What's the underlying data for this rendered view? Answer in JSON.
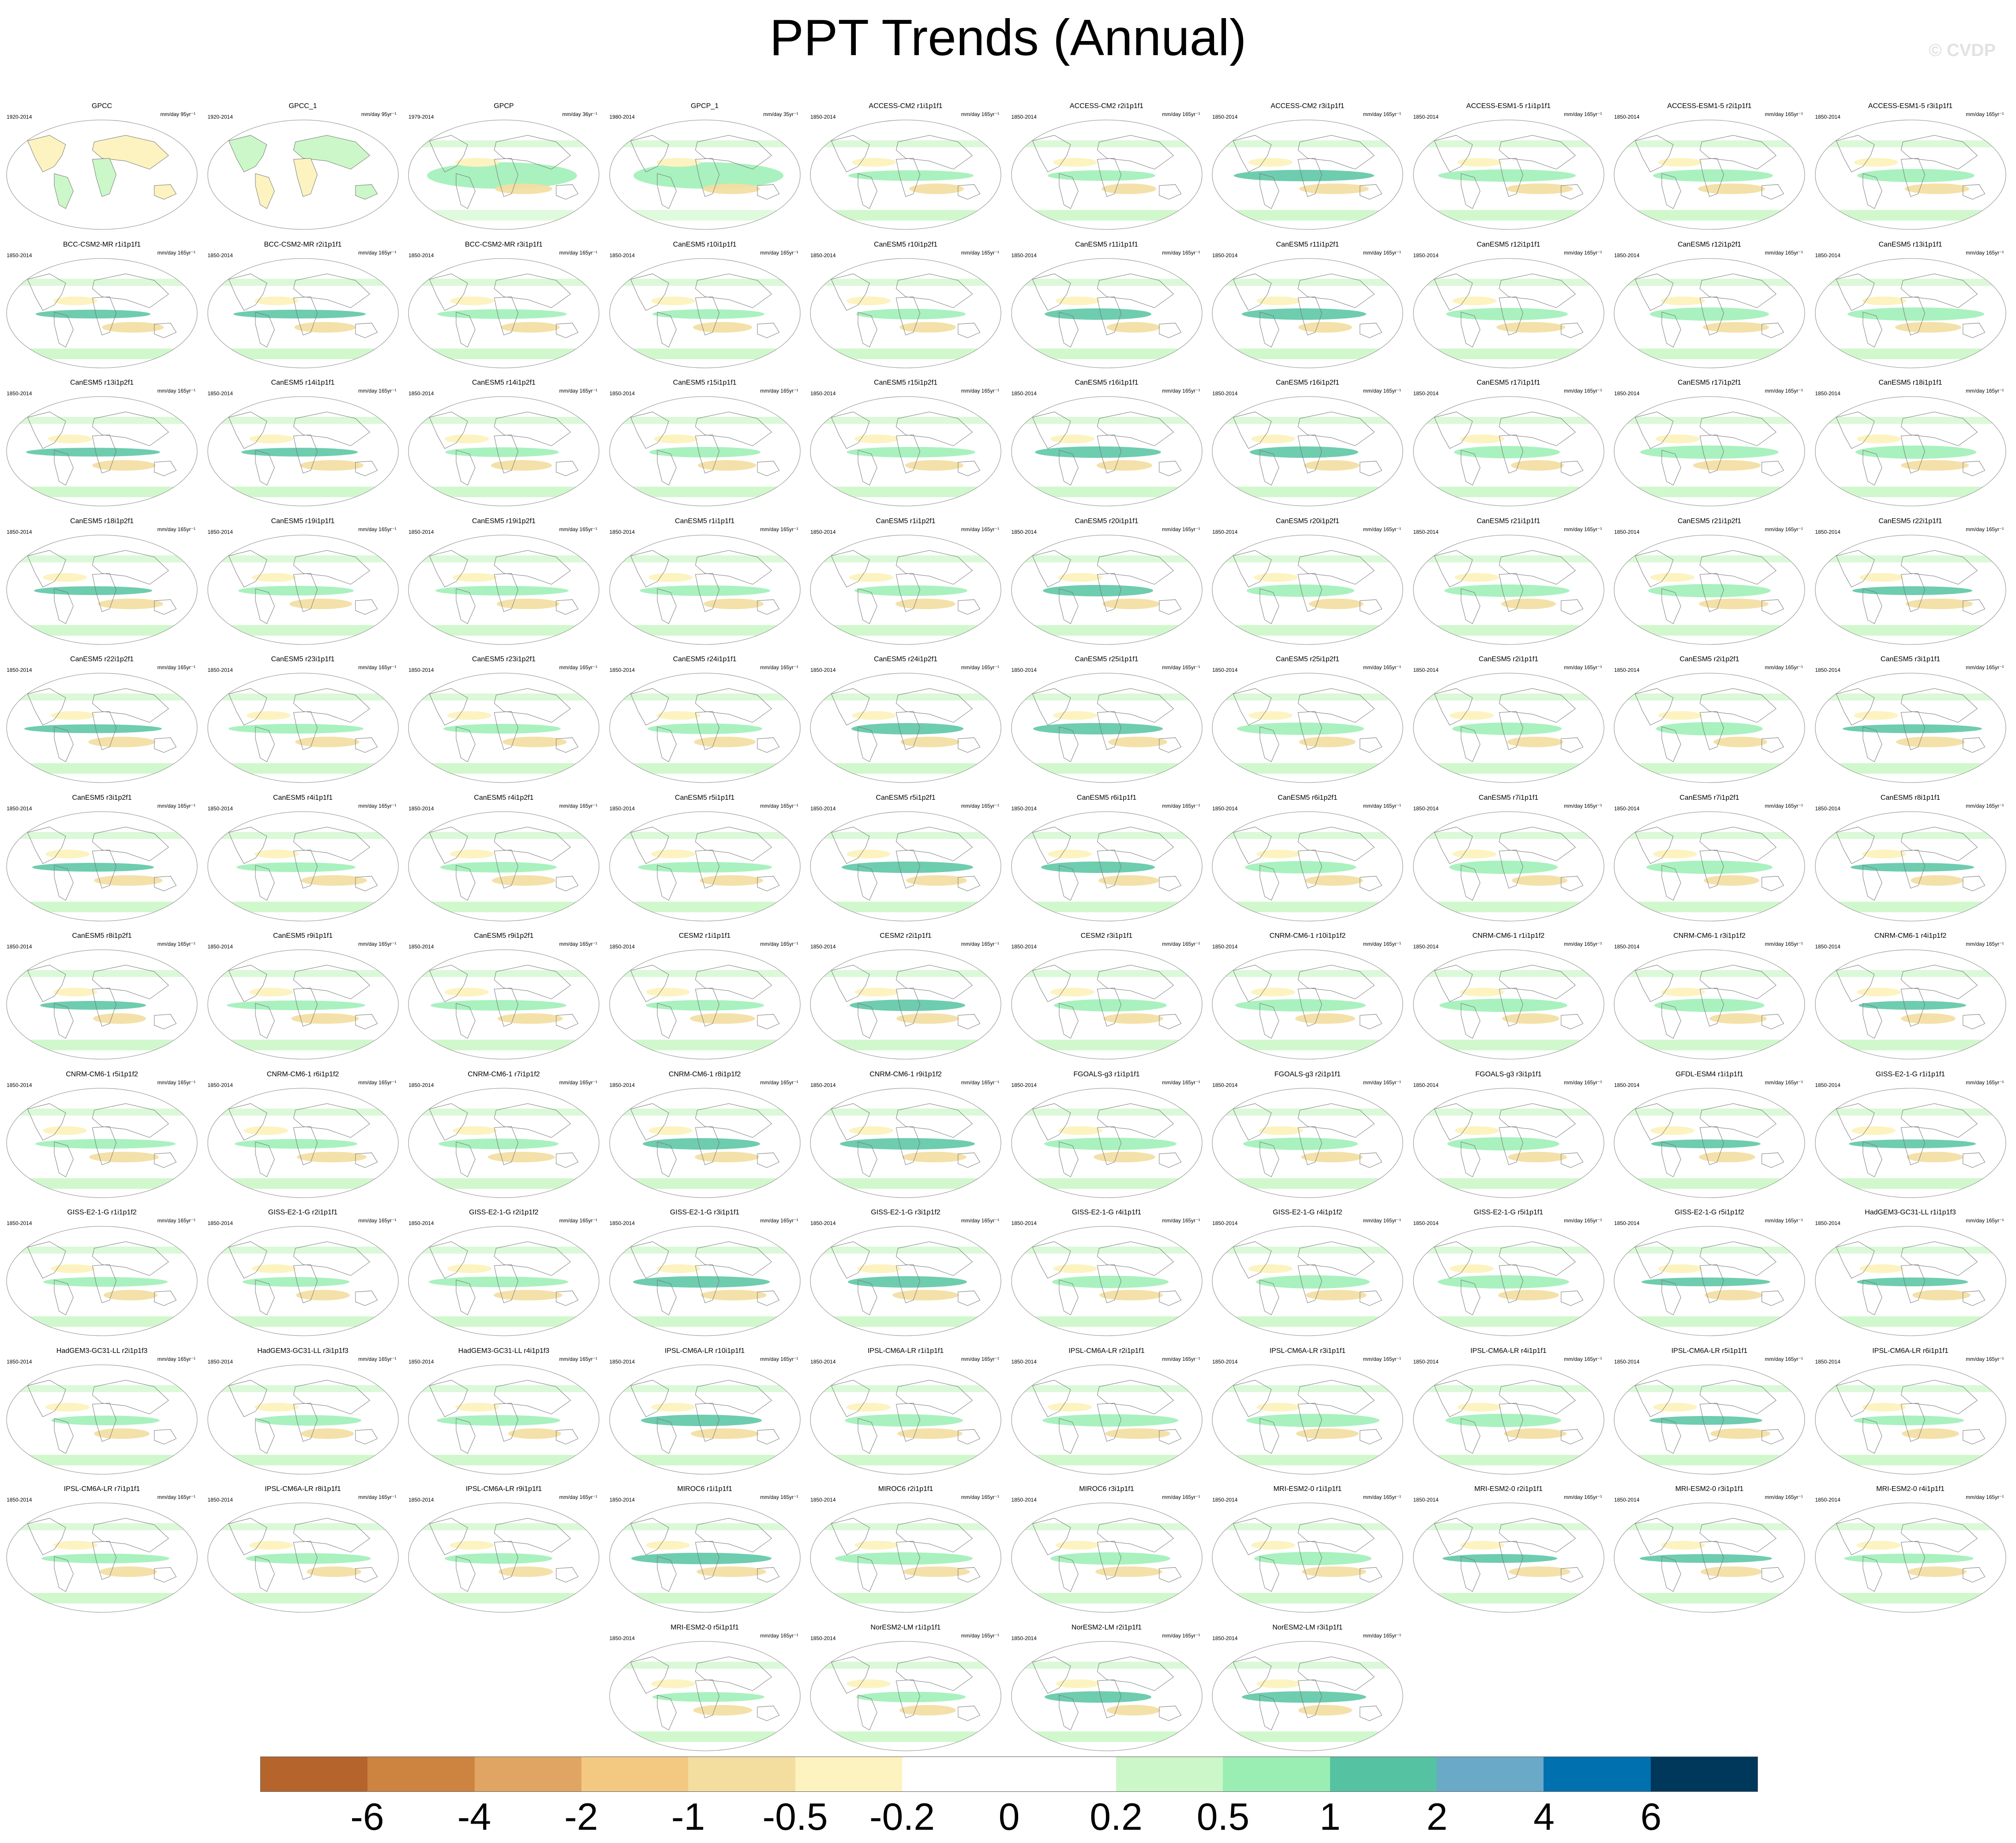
{
  "title": "PPT Trends (Annual)",
  "watermark": "© CVDP",
  "chart_data": {
    "type": "heatmap",
    "variable": "PPT Trends (Annual)",
    "colorbar": {
      "tick_labels": [
        "-6",
        "-4",
        "-2",
        "-1",
        "-0.5",
        "-0.2",
        "0",
        "0.2",
        "0.5",
        "1",
        "2",
        "4",
        "6"
      ],
      "colors": [
        "#b5652b",
        "#cc8440",
        "#e0a562",
        "#f3c982",
        "#f3dea0",
        "#fdf3c0",
        "#ffffff",
        "#ffffff",
        "#ccf7c8",
        "#9aeeb4",
        "#55c3a1",
        "#6aa9c8",
        "#0071ae",
        "#00385b"
      ]
    },
    "panels": [
      {
        "title": "GPCC",
        "years": "1920-2014",
        "units": "mm/day 95yr⁻¹"
      },
      {
        "title": "GPCC_1",
        "years": "1920-2014",
        "units": "mm/day 95yr⁻¹"
      },
      {
        "title": "GPCP",
        "years": "1979-2014",
        "units": "mm/day 36yr⁻¹"
      },
      {
        "title": "GPCP_1",
        "years": "1980-2014",
        "units": "mm/day 35yr⁻¹"
      },
      {
        "title": "ACCESS-CM2 r1i1p1f1",
        "years": "1850-2014",
        "units": "mm/day 165yr⁻¹"
      },
      {
        "title": "ACCESS-CM2 r2i1p1f1",
        "years": "1850-2014",
        "units": "mm/day 165yr⁻¹"
      },
      {
        "title": "ACCESS-CM2 r3i1p1f1",
        "years": "1850-2014",
        "units": "mm/day 165yr⁻¹"
      },
      {
        "title": "ACCESS-ESM1-5 r1i1p1f1",
        "years": "1850-2014",
        "units": "mm/day 165yr⁻¹"
      },
      {
        "title": "ACCESS-ESM1-5 r2i1p1f1",
        "years": "1850-2014",
        "units": "mm/day 165yr⁻¹"
      },
      {
        "title": "ACCESS-ESM1-5 r3i1p1f1",
        "years": "1850-2014",
        "units": "mm/day 165yr⁻¹"
      },
      {
        "title": "BCC-CSM2-MR r1i1p1f1",
        "years": "1850-2014",
        "units": "mm/day 165yr⁻¹"
      },
      {
        "title": "BCC-CSM2-MR r2i1p1f1",
        "years": "1850-2014",
        "units": "mm/day 165yr⁻¹"
      },
      {
        "title": "BCC-CSM2-MR r3i1p1f1",
        "years": "1850-2014",
        "units": "mm/day 165yr⁻¹"
      },
      {
        "title": "CanESM5 r10i1p1f1",
        "years": "1850-2014",
        "units": "mm/day 165yr⁻¹"
      },
      {
        "title": "CanESM5 r10i1p2f1",
        "years": "1850-2014",
        "units": "mm/day 165yr⁻¹"
      },
      {
        "title": "CanESM5 r11i1p1f1",
        "years": "1850-2014",
        "units": "mm/day 165yr⁻¹"
      },
      {
        "title": "CanESM5 r11i1p2f1",
        "years": "1850-2014",
        "units": "mm/day 165yr⁻¹"
      },
      {
        "title": "CanESM5 r12i1p1f1",
        "years": "1850-2014",
        "units": "mm/day 165yr⁻¹"
      },
      {
        "title": "CanESM5 r12i1p2f1",
        "years": "1850-2014",
        "units": "mm/day 165yr⁻¹"
      },
      {
        "title": "CanESM5 r13i1p1f1",
        "years": "1850-2014",
        "units": "mm/day 165yr⁻¹"
      },
      {
        "title": "CanESM5 r13i1p2f1",
        "years": "1850-2014",
        "units": "mm/day 165yr⁻¹"
      },
      {
        "title": "CanESM5 r14i1p1f1",
        "years": "1850-2014",
        "units": "mm/day 165yr⁻¹"
      },
      {
        "title": "CanESM5 r14i1p2f1",
        "years": "1850-2014",
        "units": "mm/day 165yr⁻¹"
      },
      {
        "title": "CanESM5 r15i1p1f1",
        "years": "1850-2014",
        "units": "mm/day 165yr⁻¹"
      },
      {
        "title": "CanESM5 r15i1p2f1",
        "years": "1850-2014",
        "units": "mm/day 165yr⁻¹"
      },
      {
        "title": "CanESM5 r16i1p1f1",
        "years": "1850-2014",
        "units": "mm/day 165yr⁻¹"
      },
      {
        "title": "CanESM5 r16i1p2f1",
        "years": "1850-2014",
        "units": "mm/day 165yr⁻¹"
      },
      {
        "title": "CanESM5 r17i1p1f1",
        "years": "1850-2014",
        "units": "mm/day 165yr⁻¹"
      },
      {
        "title": "CanESM5 r17i1p2f1",
        "years": "1850-2014",
        "units": "mm/day 165yr⁻¹"
      },
      {
        "title": "CanESM5 r18i1p1f1",
        "years": "1850-2014",
        "units": "mm/day 165yr⁻¹"
      },
      {
        "title": "CanESM5 r18i1p2f1",
        "years": "1850-2014",
        "units": "mm/day 165yr⁻¹"
      },
      {
        "title": "CanESM5 r19i1p1f1",
        "years": "1850-2014",
        "units": "mm/day 165yr⁻¹"
      },
      {
        "title": "CanESM5 r19i1p2f1",
        "years": "1850-2014",
        "units": "mm/day 165yr⁻¹"
      },
      {
        "title": "CanESM5 r1i1p1f1",
        "years": "1850-2014",
        "units": "mm/day 165yr⁻¹"
      },
      {
        "title": "CanESM5 r1i1p2f1",
        "years": "1850-2014",
        "units": "mm/day 165yr⁻¹"
      },
      {
        "title": "CanESM5 r20i1p1f1",
        "years": "1850-2014",
        "units": "mm/day 165yr⁻¹"
      },
      {
        "title": "CanESM5 r20i1p2f1",
        "years": "1850-2014",
        "units": "mm/day 165yr⁻¹"
      },
      {
        "title": "CanESM5 r21i1p1f1",
        "years": "1850-2014",
        "units": "mm/day 165yr⁻¹"
      },
      {
        "title": "CanESM5 r21i1p2f1",
        "years": "1850-2014",
        "units": "mm/day 165yr⁻¹"
      },
      {
        "title": "CanESM5 r22i1p1f1",
        "years": "1850-2014",
        "units": "mm/day 165yr⁻¹"
      },
      {
        "title": "CanESM5 r22i1p2f1",
        "years": "1850-2014",
        "units": "mm/day 165yr⁻¹"
      },
      {
        "title": "CanESM5 r23i1p1f1",
        "years": "1850-2014",
        "units": "mm/day 165yr⁻¹"
      },
      {
        "title": "CanESM5 r23i1p2f1",
        "years": "1850-2014",
        "units": "mm/day 165yr⁻¹"
      },
      {
        "title": "CanESM5 r24i1p1f1",
        "years": "1850-2014",
        "units": "mm/day 165yr⁻¹"
      },
      {
        "title": "CanESM5 r24i1p2f1",
        "years": "1850-2014",
        "units": "mm/day 165yr⁻¹"
      },
      {
        "title": "CanESM5 r25i1p1f1",
        "years": "1850-2014",
        "units": "mm/day 165yr⁻¹"
      },
      {
        "title": "CanESM5 r25i1p2f1",
        "years": "1850-2014",
        "units": "mm/day 165yr⁻¹"
      },
      {
        "title": "CanESM5 r2i1p1f1",
        "years": "1850-2014",
        "units": "mm/day 165yr⁻¹"
      },
      {
        "title": "CanESM5 r2i1p2f1",
        "years": "1850-2014",
        "units": "mm/day 165yr⁻¹"
      },
      {
        "title": "CanESM5 r3i1p1f1",
        "years": "1850-2014",
        "units": "mm/day 165yr⁻¹"
      },
      {
        "title": "CanESM5 r3i1p2f1",
        "years": "1850-2014",
        "units": "mm/day 165yr⁻¹"
      },
      {
        "title": "CanESM5 r4i1p1f1",
        "years": "1850-2014",
        "units": "mm/day 165yr⁻¹"
      },
      {
        "title": "CanESM5 r4i1p2f1",
        "years": "1850-2014",
        "units": "mm/day 165yr⁻¹"
      },
      {
        "title": "CanESM5 r5i1p1f1",
        "years": "1850-2014",
        "units": "mm/day 165yr⁻¹"
      },
      {
        "title": "CanESM5 r5i1p2f1",
        "years": "1850-2014",
        "units": "mm/day 165yr⁻¹"
      },
      {
        "title": "CanESM5 r6i1p1f1",
        "years": "1850-2014",
        "units": "mm/day 165yr⁻¹"
      },
      {
        "title": "CanESM5 r6i1p2f1",
        "years": "1850-2014",
        "units": "mm/day 165yr⁻¹"
      },
      {
        "title": "CanESM5 r7i1p1f1",
        "years": "1850-2014",
        "units": "mm/day 165yr⁻¹"
      },
      {
        "title": "CanESM5 r7i1p2f1",
        "years": "1850-2014",
        "units": "mm/day 165yr⁻¹"
      },
      {
        "title": "CanESM5 r8i1p1f1",
        "years": "1850-2014",
        "units": "mm/day 165yr⁻¹"
      },
      {
        "title": "CanESM5 r8i1p2f1",
        "years": "1850-2014",
        "units": "mm/day 165yr⁻¹"
      },
      {
        "title": "CanESM5 r9i1p1f1",
        "years": "1850-2014",
        "units": "mm/day 165yr⁻¹"
      },
      {
        "title": "CanESM5 r9i1p2f1",
        "years": "1850-2014",
        "units": "mm/day 165yr⁻¹"
      },
      {
        "title": "CESM2 r1i1p1f1",
        "years": "1850-2014",
        "units": "mm/day 165yr⁻¹"
      },
      {
        "title": "CESM2 r2i1p1f1",
        "years": "1850-2014",
        "units": "mm/day 165yr⁻¹"
      },
      {
        "title": "CESM2 r3i1p1f1",
        "years": "1850-2014",
        "units": "mm/day 165yr⁻¹"
      },
      {
        "title": "CNRM-CM6-1 r10i1p1f2",
        "years": "1850-2014",
        "units": "mm/day 165yr⁻¹"
      },
      {
        "title": "CNRM-CM6-1 r1i1p1f2",
        "years": "1850-2014",
        "units": "mm/day 165yr⁻¹"
      },
      {
        "title": "CNRM-CM6-1 r3i1p1f2",
        "years": "1850-2014",
        "units": "mm/day 165yr⁻¹"
      },
      {
        "title": "CNRM-CM6-1 r4i1p1f2",
        "years": "1850-2014",
        "units": "mm/day 165yr⁻¹"
      },
      {
        "title": "CNRM-CM6-1 r5i1p1f2",
        "years": "1850-2014",
        "units": "mm/day 165yr⁻¹"
      },
      {
        "title": "CNRM-CM6-1 r6i1p1f2",
        "years": "1850-2014",
        "units": "mm/day 165yr⁻¹"
      },
      {
        "title": "CNRM-CM6-1 r7i1p1f2",
        "years": "1850-2014",
        "units": "mm/day 165yr⁻¹"
      },
      {
        "title": "CNRM-CM6-1 r8i1p1f2",
        "years": "1850-2014",
        "units": "mm/day 165yr⁻¹"
      },
      {
        "title": "CNRM-CM6-1 r9i1p1f2",
        "years": "1850-2014",
        "units": "mm/day 165yr⁻¹"
      },
      {
        "title": "FGOALS-g3 r1i1p1f1",
        "years": "1850-2014",
        "units": "mm/day 165yr⁻¹"
      },
      {
        "title": "FGOALS-g3 r2i1p1f1",
        "years": "1850-2014",
        "units": "mm/day 165yr⁻¹"
      },
      {
        "title": "FGOALS-g3 r3i1p1f1",
        "years": "1850-2014",
        "units": "mm/day 165yr⁻¹"
      },
      {
        "title": "GFDL-ESM4 r1i1p1f1",
        "years": "1850-2014",
        "units": "mm/day 165yr⁻¹"
      },
      {
        "title": "GISS-E2-1-G r1i1p1f1",
        "years": "1850-2014",
        "units": "mm/day 165yr⁻¹"
      },
      {
        "title": "GISS-E2-1-G r1i1p1f2",
        "years": "1850-2014",
        "units": "mm/day 165yr⁻¹"
      },
      {
        "title": "GISS-E2-1-G r2i1p1f1",
        "years": "1850-2014",
        "units": "mm/day 165yr⁻¹"
      },
      {
        "title": "GISS-E2-1-G r2i1p1f2",
        "years": "1850-2014",
        "units": "mm/day 165yr⁻¹"
      },
      {
        "title": "GISS-E2-1-G r3i1p1f1",
        "years": "1850-2014",
        "units": "mm/day 165yr⁻¹"
      },
      {
        "title": "GISS-E2-1-G r3i1p1f2",
        "years": "1850-2014",
        "units": "mm/day 165yr⁻¹"
      },
      {
        "title": "GISS-E2-1-G r4i1p1f1",
        "years": "1850-2014",
        "units": "mm/day 165yr⁻¹"
      },
      {
        "title": "GISS-E2-1-G r4i1p1f2",
        "years": "1850-2014",
        "units": "mm/day 165yr⁻¹"
      },
      {
        "title": "GISS-E2-1-G r5i1p1f1",
        "years": "1850-2014",
        "units": "mm/day 165yr⁻¹"
      },
      {
        "title": "GISS-E2-1-G r5i1p1f2",
        "years": "1850-2014",
        "units": "mm/day 165yr⁻¹"
      },
      {
        "title": "HadGEM3-GC31-LL r1i1p1f3",
        "years": "1850-2014",
        "units": "mm/day 165yr⁻¹"
      },
      {
        "title": "HadGEM3-GC31-LL r2i1p1f3",
        "years": "1850-2014",
        "units": "mm/day 165yr⁻¹"
      },
      {
        "title": "HadGEM3-GC31-LL r3i1p1f3",
        "years": "1850-2014",
        "units": "mm/day 165yr⁻¹"
      },
      {
        "title": "HadGEM3-GC31-LL r4i1p1f3",
        "years": "1850-2014",
        "units": "mm/day 165yr⁻¹"
      },
      {
        "title": "IPSL-CM6A-LR r10i1p1f1",
        "years": "1850-2014",
        "units": "mm/day 165yr⁻¹"
      },
      {
        "title": "IPSL-CM6A-LR r1i1p1f1",
        "years": "1850-2014",
        "units": "mm/day 165yr⁻¹"
      },
      {
        "title": "IPSL-CM6A-LR r2i1p1f1",
        "years": "1850-2014",
        "units": "mm/day 165yr⁻¹"
      },
      {
        "title": "IPSL-CM6A-LR r3i1p1f1",
        "years": "1850-2014",
        "units": "mm/day 165yr⁻¹"
      },
      {
        "title": "IPSL-CM6A-LR r4i1p1f1",
        "years": "1850-2014",
        "units": "mm/day 165yr⁻¹"
      },
      {
        "title": "IPSL-CM6A-LR r5i1p1f1",
        "years": "1850-2014",
        "units": "mm/day 165yr⁻¹"
      },
      {
        "title": "IPSL-CM6A-LR r6i1p1f1",
        "years": "1850-2014",
        "units": "mm/day 165yr⁻¹"
      },
      {
        "title": "IPSL-CM6A-LR r7i1p1f1",
        "years": "1850-2014",
        "units": "mm/day 165yr⁻¹"
      },
      {
        "title": "IPSL-CM6A-LR r8i1p1f1",
        "years": "1850-2014",
        "units": "mm/day 165yr⁻¹"
      },
      {
        "title": "IPSL-CM6A-LR r9i1p1f1",
        "years": "1850-2014",
        "units": "mm/day 165yr⁻¹"
      },
      {
        "title": "MIROC6 r1i1p1f1",
        "years": "1850-2014",
        "units": "mm/day 165yr⁻¹"
      },
      {
        "title": "MIROC6 r2i1p1f1",
        "years": "1850-2014",
        "units": "mm/day 165yr⁻¹"
      },
      {
        "title": "MIROC6 r3i1p1f1",
        "years": "1850-2014",
        "units": "mm/day 165yr⁻¹"
      },
      {
        "title": "MRI-ESM2-0 r1i1p1f1",
        "years": "1850-2014",
        "units": "mm/day 165yr⁻¹"
      },
      {
        "title": "MRI-ESM2-0 r2i1p1f1",
        "years": "1850-2014",
        "units": "mm/day 165yr⁻¹"
      },
      {
        "title": "MRI-ESM2-0 r3i1p1f1",
        "years": "1850-2014",
        "units": "mm/day 165yr⁻¹"
      },
      {
        "title": "MRI-ESM2-0 r4i1p1f1",
        "years": "1850-2014",
        "units": "mm/day 165yr⁻¹"
      },
      {
        "title": "MRI-ESM2-0 r5i1p1f1",
        "years": "1850-2014",
        "units": "mm/day 165yr⁻¹"
      },
      {
        "title": "NorESM2-LM r1i1p1f1",
        "years": "1850-2014",
        "units": "mm/day 165yr⁻¹"
      },
      {
        "title": "NorESM2-LM r2i1p1f1",
        "years": "1850-2014",
        "units": "mm/day 165yr⁻¹"
      },
      {
        "title": "NorESM2-LM r3i1p1f1",
        "years": "1850-2014",
        "units": "mm/day 165yr⁻¹"
      }
    ]
  }
}
